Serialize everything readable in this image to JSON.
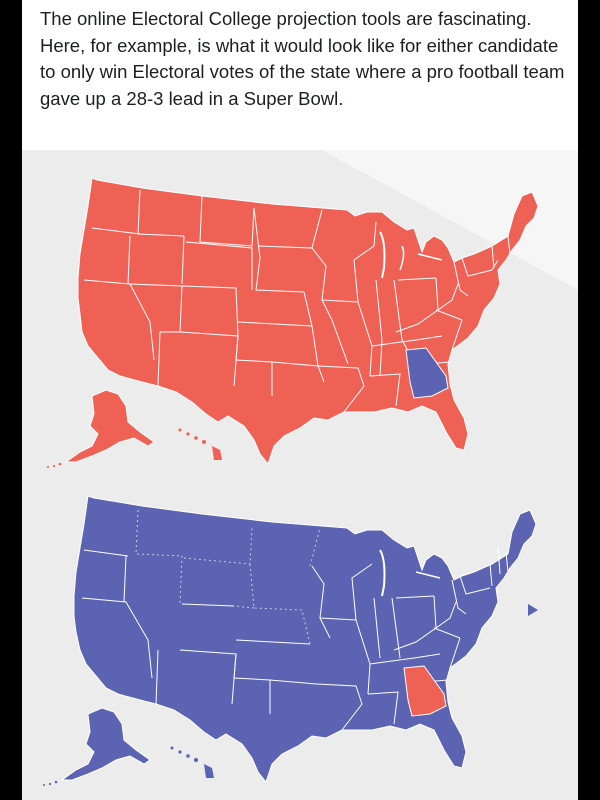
{
  "post": {
    "caption": "The online Electoral College projection tools are fascinating. Here, for example, is what it would look like for either candidate to only win Electoral votes of the state where a pro football team gave up a 28-3 lead in a Super Bowl."
  },
  "maps": [
    {
      "name": "map-republican-sweep",
      "base_color": "#ef6055",
      "highlight_state": "Georgia",
      "highlight_color": "#5b63b2"
    },
    {
      "name": "map-democratic-sweep",
      "base_color": "#5b63b2",
      "highlight_state": "Georgia",
      "highlight_color": "#ef6055"
    }
  ],
  "colors": {
    "red": "#ef6055",
    "blue": "#5b63b2",
    "border": "#ffffff",
    "background": "#ececec",
    "caption_bg": "#ffffff",
    "caption_text": "#1c1e21"
  }
}
